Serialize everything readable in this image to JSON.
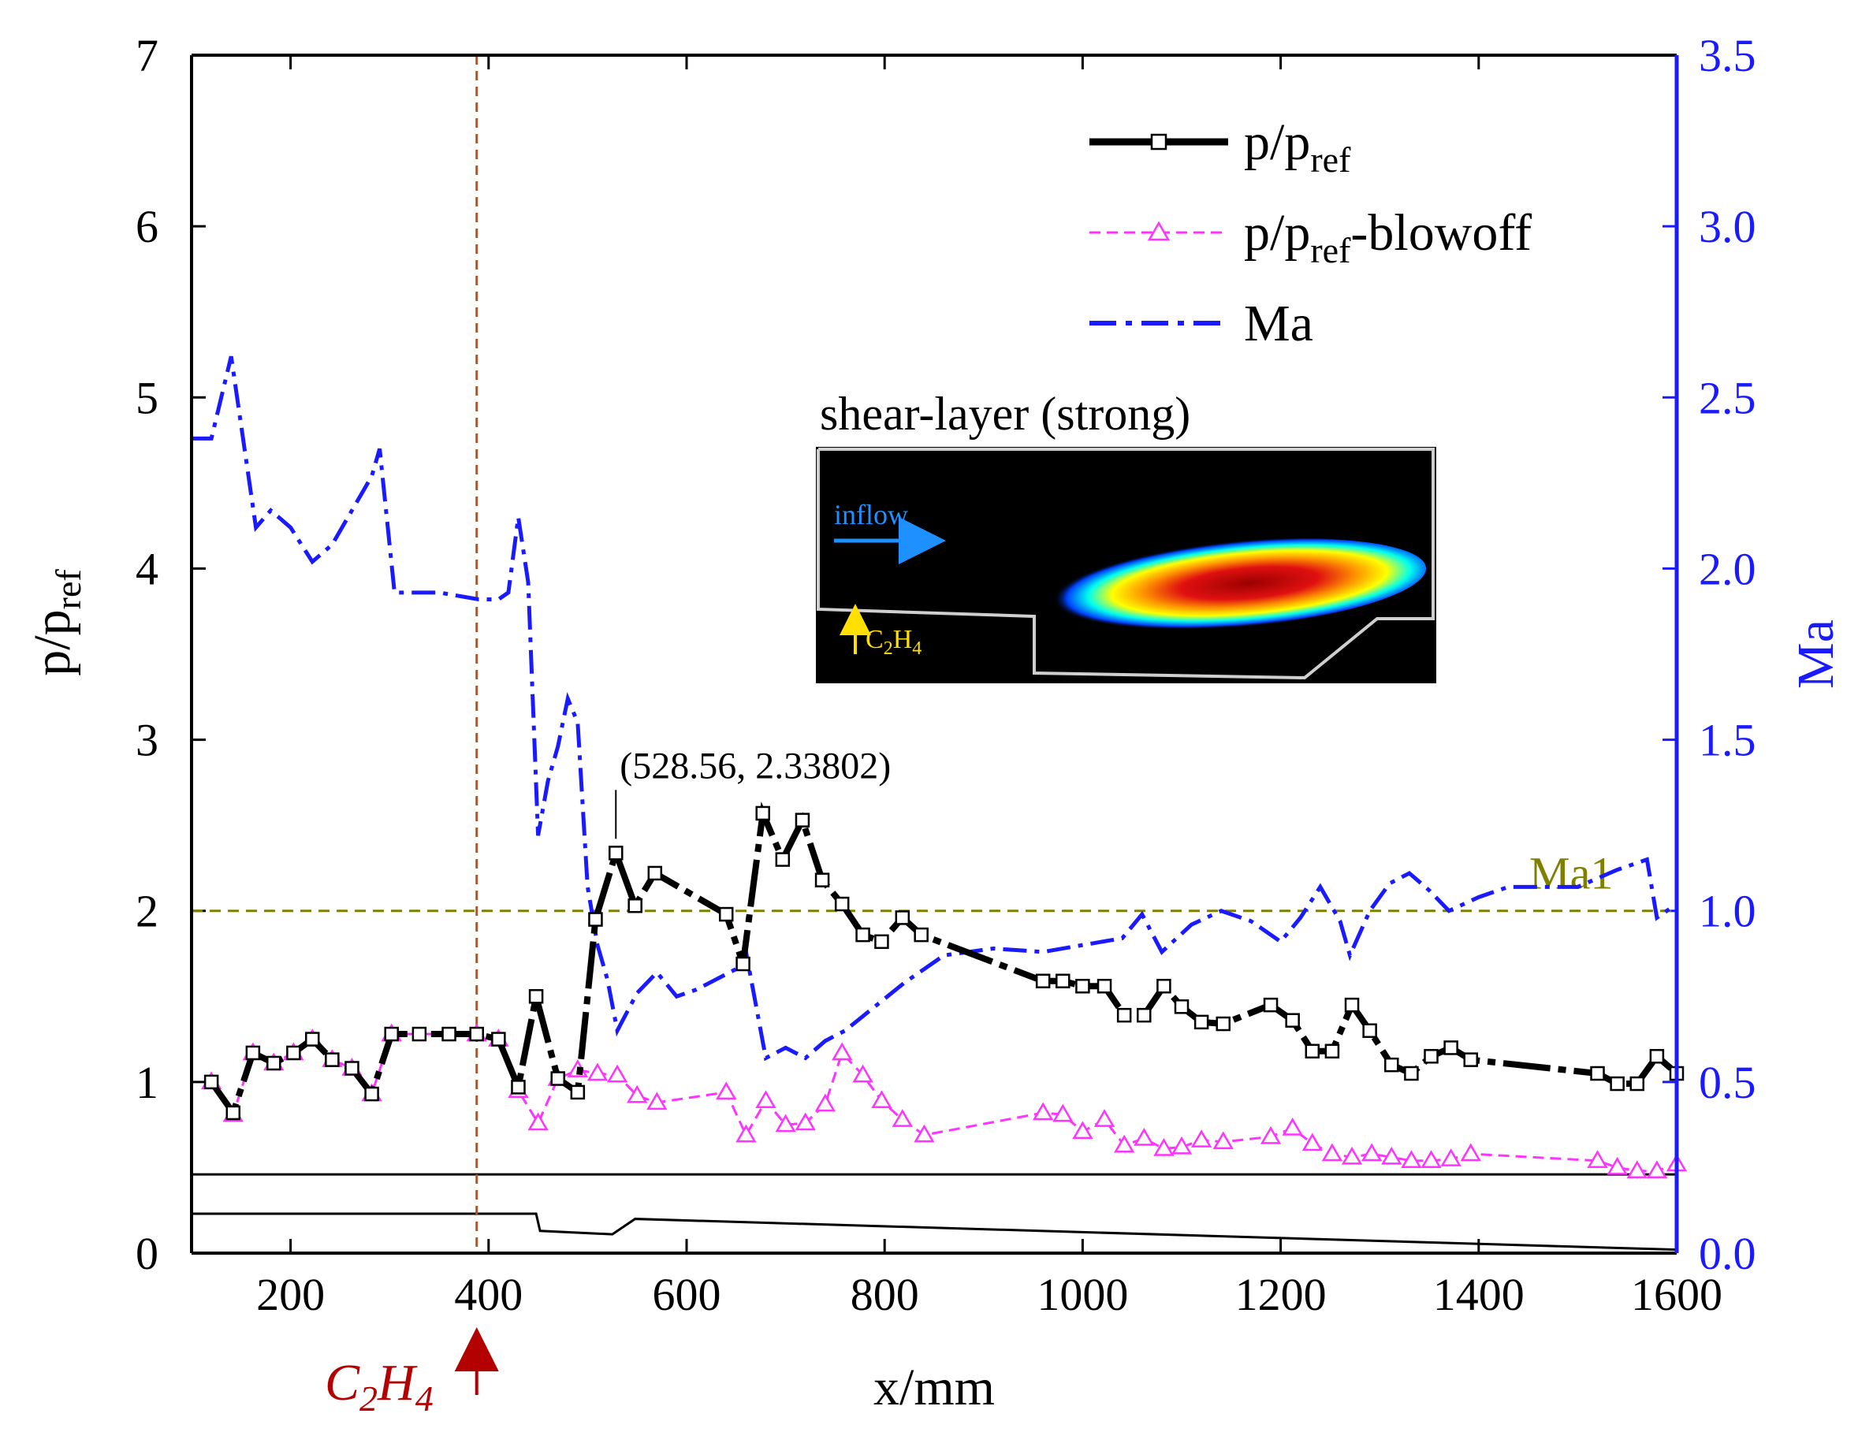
{
  "chart_data": {
    "type": "line",
    "xlabel": "x/mm",
    "ylabel_left": "p/p",
    "ylabel_left_sub": "ref",
    "ylabel_right": "Ma",
    "xlim": [
      100,
      1600
    ],
    "ylim_left": [
      0,
      7
    ],
    "ylim_right": [
      0,
      3.5
    ],
    "x_ticks": [
      200,
      400,
      600,
      800,
      1000,
      1200,
      1400,
      1600
    ],
    "y_left_ticks": [
      0,
      1,
      2,
      3,
      4,
      5,
      6,
      7
    ],
    "y_right_ticks": [
      "0.0",
      "0.5",
      "1.0",
      "1.5",
      "2.0",
      "2.5",
      "3.0",
      "3.5"
    ],
    "colors": {
      "p": "#000000",
      "blowoff": "#ff33ff",
      "ma": "#1a1aff",
      "ma1_line": "#808000",
      "injection_line": "#b5541c",
      "injection_label": "#b30000",
      "right_axis": "#1a1aff"
    },
    "series": [
      {
        "name": "p/p_ref",
        "legend_main": "p/p",
        "legend_sub": "ref",
        "legend_tail": "",
        "axis": "left",
        "x": [
          120,
          142,
          162,
          183,
          203,
          222,
          242,
          262,
          282,
          302,
          330,
          360,
          388,
          410,
          430,
          448,
          470,
          490,
          508,
          528.56,
          548,
          568,
          640,
          657,
          677,
          697,
          717,
          737,
          757,
          778,
          797,
          818,
          837,
          960,
          980,
          1000,
          1022,
          1042,
          1062,
          1082,
          1100,
          1120,
          1142,
          1190,
          1212,
          1232,
          1252,
          1272,
          1290,
          1312,
          1332,
          1352,
          1372,
          1392,
          1520,
          1540,
          1560,
          1580,
          1600
        ],
        "y": [
          1.0,
          0.82,
          1.17,
          1.11,
          1.17,
          1.25,
          1.13,
          1.08,
          0.93,
          1.28,
          1.28,
          1.28,
          1.28,
          1.25,
          0.97,
          1.5,
          1.02,
          0.94,
          1.95,
          2.33802,
          2.03,
          2.22,
          1.98,
          1.69,
          2.57,
          2.3,
          2.53,
          2.18,
          2.04,
          1.86,
          1.82,
          1.96,
          1.86,
          1.59,
          1.59,
          1.56,
          1.56,
          1.39,
          1.39,
          1.56,
          1.44,
          1.35,
          1.34,
          1.45,
          1.36,
          1.18,
          1.18,
          1.45,
          1.3,
          1.1,
          1.05,
          1.15,
          1.2,
          1.13,
          1.05,
          0.99,
          0.99,
          1.15,
          1.05
        ]
      },
      {
        "name": "p/p_ref-blowoff",
        "legend_main": "p/p",
        "legend_sub": "ref",
        "legend_tail": "-blowoff",
        "axis": "left",
        "x": [
          120,
          142,
          162,
          183,
          203,
          222,
          242,
          262,
          282,
          302,
          388,
          410,
          430,
          450,
          470,
          490,
          510,
          530,
          550,
          570,
          640,
          660,
          680,
          700,
          720,
          740,
          757,
          778,
          797,
          818,
          840,
          960,
          980,
          1000,
          1022,
          1042,
          1062,
          1082,
          1100,
          1120,
          1142,
          1190,
          1212,
          1232,
          1252,
          1272,
          1292,
          1312,
          1332,
          1352,
          1372,
          1392,
          1520,
          1540,
          1560,
          1580,
          1600
        ],
        "y": [
          1.0,
          0.81,
          1.17,
          1.11,
          1.17,
          1.25,
          1.13,
          1.08,
          0.93,
          1.28,
          1.28,
          1.25,
          0.95,
          0.76,
          1.02,
          1.07,
          1.05,
          1.04,
          0.92,
          0.88,
          0.94,
          0.69,
          0.89,
          0.75,
          0.76,
          0.87,
          1.17,
          1.04,
          0.89,
          0.78,
          0.69,
          0.82,
          0.81,
          0.71,
          0.78,
          0.63,
          0.67,
          0.61,
          0.62,
          0.66,
          0.65,
          0.68,
          0.73,
          0.64,
          0.58,
          0.56,
          0.58,
          0.56,
          0.54,
          0.54,
          0.55,
          0.58,
          0.54,
          0.5,
          0.48,
          0.48,
          0.52
        ]
      },
      {
        "name": "Ma",
        "legend_main": "Ma",
        "legend_sub": "",
        "legend_tail": "",
        "axis": "right",
        "x": [
          100,
          120,
          140,
          150,
          165,
          180,
          200,
          222,
          242,
          262,
          282,
          290,
          305,
          350,
          390,
          410,
          420,
          430,
          440,
          450,
          460,
          470,
          480,
          490,
          500,
          510,
          520,
          530,
          550,
          570,
          590,
          610,
          630,
          650,
          660,
          680,
          700,
          720,
          740,
          760,
          790,
          820,
          860,
          910,
          960,
          1000,
          1040,
          1060,
          1080,
          1110,
          1140,
          1170,
          1200,
          1220,
          1240,
          1260,
          1270,
          1290,
          1310,
          1330,
          1350,
          1370,
          1400,
          1430,
          1460,
          1500,
          1540,
          1570,
          1580,
          1600
        ],
        "y": [
          2.38,
          2.38,
          2.62,
          2.42,
          2.12,
          2.17,
          2.12,
          2.02,
          2.07,
          2.17,
          2.27,
          2.35,
          1.93,
          1.93,
          1.91,
          1.91,
          1.93,
          2.15,
          1.96,
          1.22,
          1.38,
          1.48,
          1.62,
          1.55,
          1.07,
          0.9,
          0.8,
          0.65,
          0.76,
          0.82,
          0.75,
          0.77,
          0.8,
          0.83,
          0.88,
          0.57,
          0.6,
          0.57,
          0.62,
          0.65,
          0.72,
          0.79,
          0.87,
          0.89,
          0.88,
          0.9,
          0.92,
          0.99,
          0.88,
          0.96,
          1.0,
          0.97,
          0.91,
          0.98,
          1.07,
          0.97,
          0.87,
          1.0,
          1.08,
          1.11,
          1.06,
          1.0,
          1.04,
          1.07,
          1.07,
          1.07,
          1.12,
          1.15,
          0.98,
          1.02
        ]
      }
    ],
    "vertical_line": {
      "x": 388,
      "label_main": "C",
      "label_sub1": "2",
      "label_mid": "H",
      "label_sub2": "4"
    },
    "ma1_line": {
      "y_left": 2.0,
      "label": "Ma1"
    },
    "annotation": {
      "text": "(528.56, 2.33802)",
      "x": 528.56,
      "y": 2.33802
    },
    "geometry": {
      "top_wall": [
        [
          100,
          0.46
        ],
        [
          1600,
          0.46
        ]
      ],
      "bottom_wall": [
        [
          100,
          0.23
        ],
        [
          448,
          0.23
        ],
        [
          452,
          0.13
        ],
        [
          525,
          0.11
        ],
        [
          548,
          0.2
        ],
        [
          1600,
          0.02
        ]
      ]
    },
    "inset": {
      "title": "shear-layer (strong)",
      "inflow_label": "inflow",
      "fuel_main": "C",
      "fuel_sub1": "2",
      "fuel_mid": "H",
      "fuel_sub2": "4"
    }
  }
}
